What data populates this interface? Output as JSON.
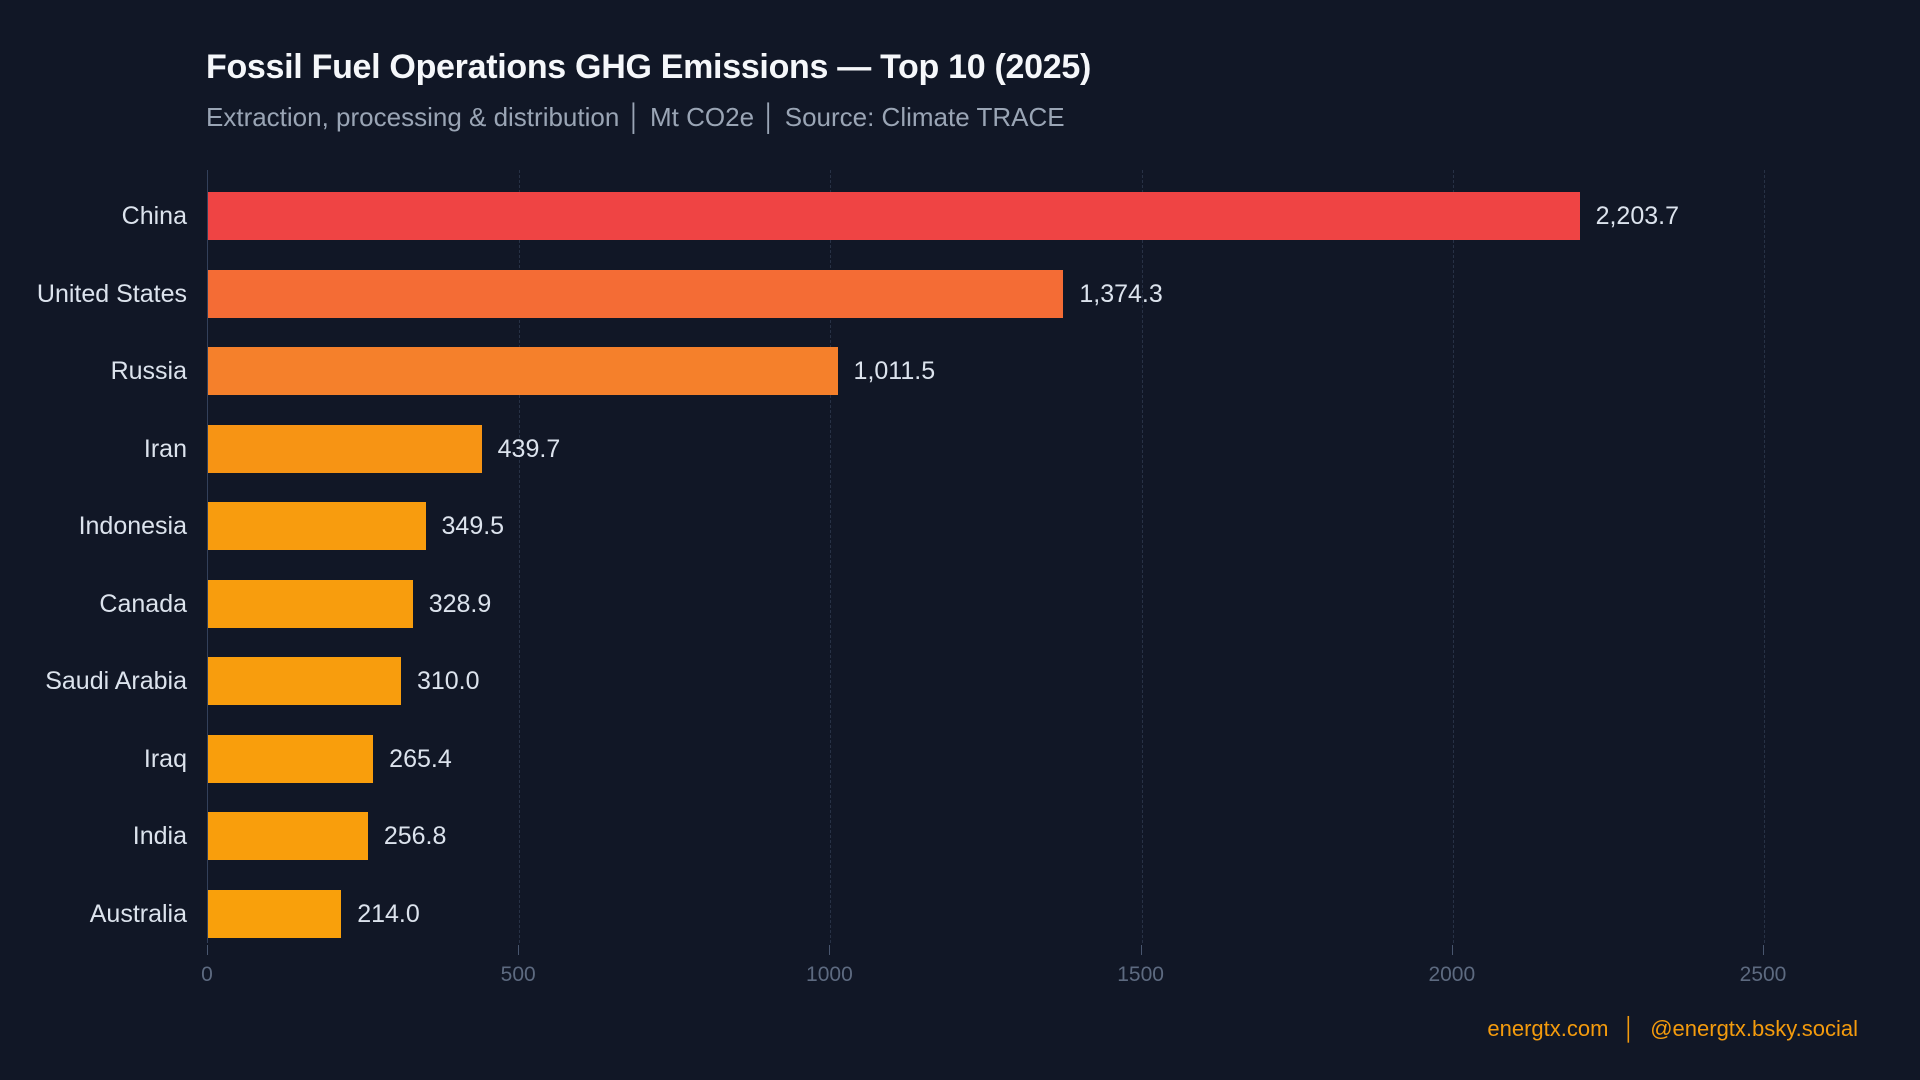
{
  "chart_data": {
    "type": "bar",
    "orientation": "horizontal",
    "title": "Fossil Fuel Operations GHG Emissions — Top 10 (2025)",
    "subtitle": "Extraction, processing & distribution │ Mt CO2e │ Source: Climate TRACE",
    "unit": "Mt CO2e",
    "source": "Climate TRACE",
    "categories": [
      "China",
      "United States",
      "Russia",
      "Iran",
      "Indonesia",
      "Canada",
      "Saudi Arabia",
      "Iraq",
      "India",
      "Australia"
    ],
    "values": [
      2203.7,
      1374.3,
      1011.5,
      439.7,
      349.5,
      328.9,
      310.0,
      265.4,
      256.8,
      214.0
    ],
    "value_labels": [
      "2,203.7",
      "1,374.3",
      "1,011.5",
      "439.7",
      "349.5",
      "328.9",
      "310.0",
      "265.4",
      "256.8",
      "214.0"
    ],
    "bar_colors": [
      "#ef4444",
      "#f46c35",
      "#f5802b",
      "#f79414",
      "#f89c0e",
      "#f89d0d",
      "#f89d0d",
      "#f99e0c",
      "#f99e0c",
      "#f9a00b"
    ],
    "xlabel": "",
    "ylabel": "",
    "xlim": [
      0,
      2500
    ],
    "xticks": [
      0,
      500,
      1000,
      1500,
      2000,
      2500
    ],
    "xtick_labels": [
      "0",
      "500",
      "1000",
      "1500",
      "2000",
      "2500"
    ],
    "grid": "vertical-dashed",
    "legend": "none"
  },
  "footer": {
    "website": "energtx.com",
    "separator": "│",
    "social": "@energtx.bsky.social"
  },
  "colors": {
    "background": "#111726",
    "title": "#f5f7fa",
    "subtitle": "#9aa5b5",
    "label": "#dce3ed",
    "tick": "#5d6a80",
    "tickmark": "#49566e",
    "grid": "#3a4760",
    "spine": "#33405a",
    "accent": "#f49b0d"
  }
}
